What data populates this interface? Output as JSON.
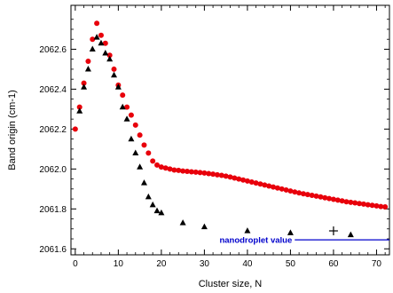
{
  "chart_data": {
    "type": "scatter",
    "xlabel": "Cluster size, N",
    "ylabel": "Band origin (cm-1)",
    "xlim": [
      -1,
      73
    ],
    "ylim": [
      2061.57,
      2062.82
    ],
    "x_ticks": [
      0,
      10,
      20,
      30,
      40,
      50,
      60,
      70
    ],
    "y_ticks": [
      2061.6,
      2061.8,
      2062.0,
      2062.2,
      2062.4,
      2062.6
    ],
    "y_tick_labels": [
      "2061.6",
      "2061.8",
      "2062.0",
      "2062.2",
      "2062.4",
      "2062.6"
    ],
    "colors": {
      "red_series": "#e8000b",
      "black_series": "#000000",
      "annotation": "#0000cc"
    },
    "series": [
      {
        "marker": "circle",
        "color": "#e8000b",
        "x": [
          0,
          1,
          2,
          3,
          4,
          5,
          6,
          7,
          8,
          9,
          10,
          11,
          12,
          13,
          14,
          15,
          16,
          17,
          18,
          19,
          20,
          21,
          22,
          23,
          24,
          25,
          26,
          27,
          28,
          29,
          30,
          31,
          32,
          33,
          34,
          35,
          36,
          37,
          38,
          39,
          40,
          41,
          42,
          43,
          44,
          45,
          46,
          47,
          48,
          49,
          50,
          51,
          52,
          53,
          54,
          55,
          56,
          57,
          58,
          59,
          60,
          61,
          62,
          63,
          64,
          65,
          66,
          67,
          68,
          69,
          70,
          71,
          72
        ],
        "y": [
          2062.2,
          2062.31,
          2062.43,
          2062.54,
          2062.65,
          2062.73,
          2062.67,
          2062.63,
          2062.57,
          2062.5,
          2062.42,
          2062.37,
          2062.31,
          2062.27,
          2062.22,
          2062.17,
          2062.12,
          2062.08,
          2062.04,
          2062.02,
          2062.01,
          2062.005,
          2062.0,
          2061.995,
          2061.993,
          2061.99,
          2061.988,
          2061.986,
          2061.984,
          2061.982,
          2061.98,
          2061.977,
          2061.974,
          2061.971,
          2061.968,
          2061.964,
          2061.96,
          2061.955,
          2061.95,
          2061.945,
          2061.94,
          2061.935,
          2061.93,
          2061.925,
          2061.92,
          2061.915,
          2061.91,
          2061.905,
          2061.9,
          2061.895,
          2061.89,
          2061.885,
          2061.88,
          2061.876,
          2061.872,
          2061.868,
          2061.864,
          2061.86,
          2061.856,
          2061.852,
          2061.848,
          2061.844,
          2061.84,
          2061.836,
          2061.833,
          2061.83,
          2061.827,
          2061.824,
          2061.821,
          2061.818,
          2061.815,
          2061.812,
          2061.81
        ]
      },
      {
        "marker": "triangle",
        "color": "#000000",
        "x": [
          1,
          2,
          3,
          4,
          5,
          6,
          7,
          8,
          9,
          10,
          11,
          12,
          13,
          14,
          15,
          16,
          17,
          18,
          19,
          20,
          25,
          30,
          40,
          50,
          64
        ],
        "y": [
          2062.29,
          2062.41,
          2062.5,
          2062.6,
          2062.66,
          2062.63,
          2062.58,
          2062.55,
          2062.47,
          2062.41,
          2062.31,
          2062.25,
          2062.15,
          2062.08,
          2062.01,
          2061.93,
          2061.86,
          2061.82,
          2061.79,
          2061.78,
          2061.73,
          2061.71,
          2061.69,
          2061.68,
          2061.67
        ]
      },
      {
        "marker": "plus",
        "color": "#000000",
        "x": [
          60
        ],
        "y": [
          2061.69
        ]
      }
    ],
    "reference_line": {
      "label": "nanodroplet value",
      "value": 2061.645,
      "x_start": 51,
      "x_end": 73,
      "color": "#0000cc"
    }
  }
}
